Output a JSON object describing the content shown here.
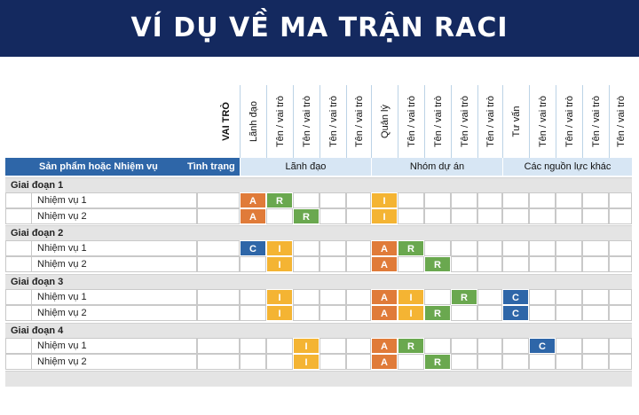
{
  "title": "VÍ DỤ VỀ MA TRẬN RACI",
  "header": {
    "roles_label": "VAI TRÒ",
    "task_column": "Sản phẩm hoặc Nhiệm vụ",
    "status_column": "Tình trạng",
    "columns": [
      "Lãnh đạo",
      "Tên / vai trò",
      "Tên / vai trò",
      "Tên / vai trò",
      "Tên / vai trò",
      "Quản lý",
      "Tên / vai trò",
      "Tên / vai trò",
      "Tên / vai trò",
      "Tên / vai trò",
      "Tư vấn",
      "Tên / vai trò",
      "Tên / vai trò",
      "Tên / vai trò",
      "Tên / vai trò"
    ],
    "groups": [
      "Lãnh đạo",
      "Nhóm dự án",
      "Các nguồn lực khác"
    ]
  },
  "colors": {
    "A": "#e07b39",
    "R": "#6aa84f",
    "I": "#f4b433",
    "C": "#2e66a8"
  },
  "phases": [
    {
      "label": "Giai đoạn 1",
      "tasks": [
        {
          "label": "Nhiệm vụ 1",
          "codes": {
            "0": "A",
            "1": "R",
            "5": "I"
          }
        },
        {
          "label": "Nhiệm vụ 2",
          "codes": {
            "0": "A",
            "2": "R",
            "5": "I"
          }
        }
      ]
    },
    {
      "label": "Giai đoạn 2",
      "tasks": [
        {
          "label": "Nhiệm vụ 1",
          "codes": {
            "0": "C",
            "1": "I",
            "5": "A",
            "6": "R"
          }
        },
        {
          "label": "Nhiệm vụ 2",
          "codes": {
            "1": "I",
            "5": "A",
            "7": "R"
          }
        }
      ]
    },
    {
      "label": "Giai đoạn 3",
      "tasks": [
        {
          "label": "Nhiệm vụ 1",
          "codes": {
            "1": "I",
            "5": "A",
            "6": "I",
            "8": "R",
            "10": "C"
          }
        },
        {
          "label": "Nhiệm vụ 2",
          "codes": {
            "1": "I",
            "5": "A",
            "6": "I",
            "7": "R",
            "10": "C"
          }
        }
      ]
    },
    {
      "label": "Giai đoạn 4",
      "tasks": [
        {
          "label": "Nhiệm vụ 1",
          "codes": {
            "2": "I",
            "5": "A",
            "6": "R",
            "11": "C"
          }
        },
        {
          "label": "Nhiệm vụ 2",
          "codes": {
            "2": "I",
            "5": "A",
            "7": "R"
          }
        }
      ]
    }
  ]
}
